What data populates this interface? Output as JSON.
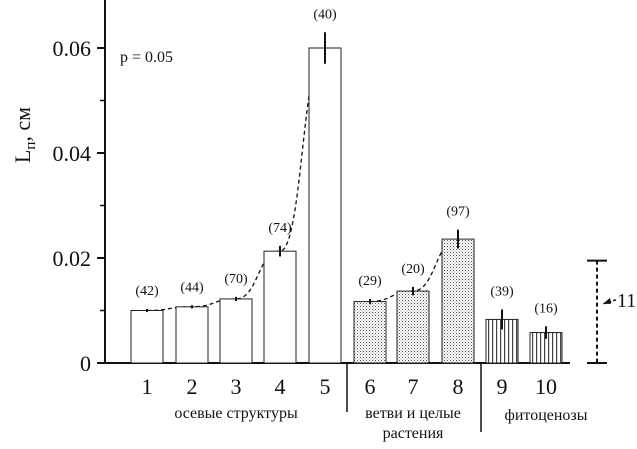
{
  "chart_data": {
    "type": "bar",
    "ylabel_main": "L",
    "ylabel_sub": "п",
    "ylabel_unit": ", см",
    "ylim": [
      0,
      0.07
    ],
    "yticks": [
      {
        "value": 0,
        "label": "0"
      },
      {
        "value": 0.02,
        "label": "0.02"
      },
      {
        "value": 0.04,
        "label": "0.04"
      },
      {
        "value": 0.06,
        "label": "0.06"
      }
    ],
    "annotation": "p = 0.05",
    "categories": [
      "1",
      "2",
      "3",
      "4",
      "5",
      "6",
      "7",
      "8",
      "9",
      "10"
    ],
    "values": [
      0.01,
      0.0107,
      0.0122,
      0.0213,
      0.06,
      0.0117,
      0.0137,
      0.0236,
      0.0083,
      0.0058
    ],
    "errors": [
      0.0003,
      0.0003,
      0.0004,
      0.001,
      0.003,
      0.0005,
      0.0008,
      0.0018,
      0.0019,
      0.0012
    ],
    "n_labels": [
      "(42)",
      "(44)",
      "(70)",
      "(74)",
      "(40)",
      "(29)",
      "(20)",
      "(97)",
      "(39)",
      "(16)"
    ],
    "fills": [
      "white",
      "white",
      "white",
      "white",
      "white",
      "dots",
      "dots",
      "dots",
      "vlines",
      "vlines"
    ],
    "groups": [
      {
        "label_lines": [
          "осевые структуры"
        ],
        "from": 1,
        "to": 5
      },
      {
        "label_lines": [
          "ветви и целые",
          "растения"
        ],
        "from": 6,
        "to": 8
      },
      {
        "label_lines": [
          "фитоценозы"
        ],
        "from": 9,
        "to": 10
      }
    ],
    "trend_lines": [
      [
        1,
        2,
        3,
        4,
        5
      ],
      [
        6,
        7,
        8
      ]
    ],
    "side_bar": {
      "label": "11",
      "low": 0,
      "high": 0.0195
    }
  }
}
